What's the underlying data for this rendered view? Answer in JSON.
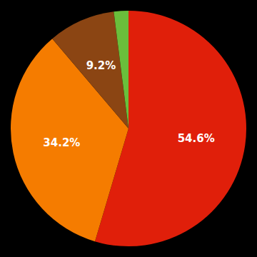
{
  "chart_data": {
    "type": "pie",
    "values": [
      54.6,
      34.2,
      9.2,
      2.0
    ],
    "value_labels": [
      "54.6%",
      "34.2%",
      "9.2%",
      null
    ],
    "colors": [
      "#e01f0a",
      "#f57c00",
      "#8b4513",
      "#6abf3b"
    ],
    "data_labels": true
  }
}
